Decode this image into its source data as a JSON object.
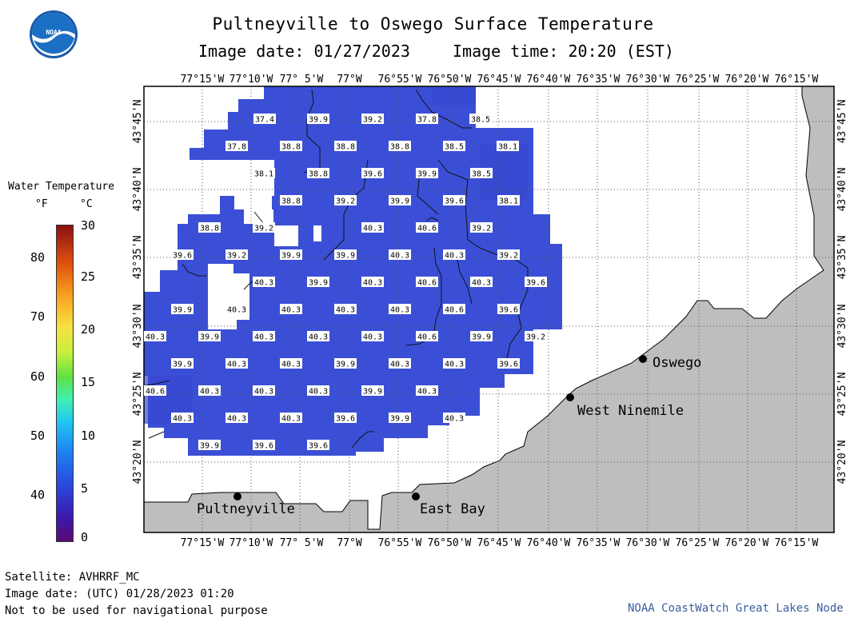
{
  "logo": {
    "text": "NOAA"
  },
  "header": {
    "title": "Pultneyville to Oswego Surface Temperature",
    "subtitle_date": "Image date: 01/27/2023",
    "subtitle_time": "Image time: 20:20 (EST)"
  },
  "legend": {
    "title": "Water Temperature",
    "unit_f": "°F",
    "unit_c": "°C",
    "f_ticks": [
      "80",
      "70",
      "60",
      "50",
      "40"
    ],
    "c_ticks": [
      "30",
      "25",
      "20",
      "15",
      "10",
      "5",
      "0"
    ]
  },
  "map": {
    "longitude_labels": [
      "77°15'W",
      "77°10'W",
      "77° 5'W",
      "77°W",
      "76°55'W",
      "76°50'W",
      "76°45'W",
      "76°40'W",
      "76°35'W",
      "76°30'W",
      "76°25'W",
      "76°20'W",
      "76°15'W"
    ],
    "latitude_labels": [
      "43°45'N",
      "43°40'N",
      "43°35'N",
      "43°30'N",
      "43°25'N",
      "43°20'N"
    ],
    "places": [
      {
        "name": "Pultneyville"
      },
      {
        "name": "East Bay"
      },
      {
        "name": "West Ninemile"
      },
      {
        "name": "Oswego"
      }
    ],
    "temperature_labels": [
      "37.4",
      "39.9",
      "39.2",
      "37.8",
      "38.5",
      "37.8",
      "38.8",
      "38.8",
      "38.8",
      "38.5",
      "38.1",
      "38.1",
      "38.8",
      "39.6",
      "39.9",
      "38.5",
      "38.8",
      "39.2",
      "39.9",
      "39.6",
      "38.1",
      "38.8",
      "39.2",
      "40.3",
      "40.6",
      "39.2",
      "39.6",
      "39.2",
      "39.9",
      "39.9",
      "40.3",
      "40.3",
      "39.2",
      "40.3",
      "39.9",
      "40.3",
      "40.6",
      "40.3",
      "39.6",
      "39.9",
      "40.3",
      "40.3",
      "40.3",
      "40.3",
      "40.6",
      "39.6",
      "40.3",
      "39.9",
      "40.3",
      "40.3",
      "40.3",
      "40.6",
      "39.9",
      "39.2",
      "39.9",
      "40.3",
      "40.3",
      "39.9",
      "40.3",
      "40.3",
      "39.6",
      "40.6",
      "40.3",
      "40.3",
      "40.3",
      "39.9",
      "40.3",
      "40.3",
      "40.3",
      "40.3",
      "39.6",
      "39.9",
      "40.3",
      "39.9",
      "39.6",
      "39.6"
    ]
  },
  "footer": {
    "satellite": "Satellite: AVHRRF_MC",
    "utc_date": "Image date: (UTC) 01/28/2023  01:20",
    "disclaimer": "Not to be used for navigational purpose",
    "credit": "NOAA CoastWatch Great Lakes Node"
  },
  "colors": {
    "water": "#3b4fd6",
    "land": "#bebebe",
    "frame": "#000000"
  }
}
